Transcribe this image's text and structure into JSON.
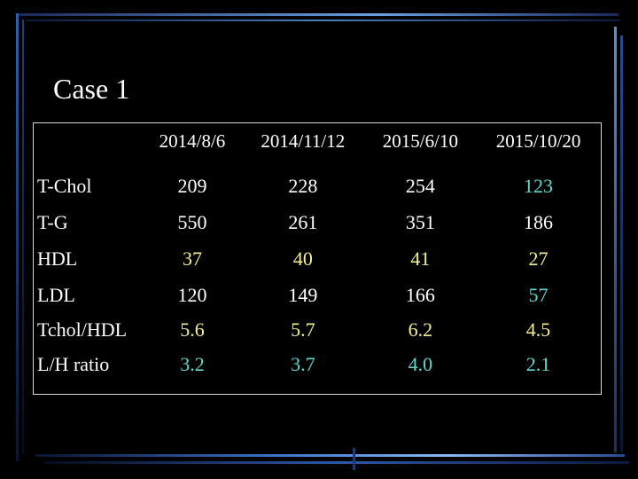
{
  "title": "Case 1",
  "table": {
    "dates": [
      "2014/8/6",
      "2014/11/12",
      "2015/6/10",
      "2015/10/20"
    ],
    "rows": [
      {
        "label": "T-Chol",
        "values": [
          "209",
          "228",
          "254",
          "123"
        ]
      },
      {
        "label": "T-G",
        "values": [
          "550",
          "261",
          "351",
          "186"
        ]
      },
      {
        "label": "HDL",
        "values": [
          "37",
          "40",
          "41",
          "27"
        ]
      },
      {
        "label": "LDL",
        "values": [
          "120",
          "149",
          "166",
          "57"
        ]
      },
      {
        "label": "Tchol/HDL",
        "values": [
          "5.6",
          "5.7",
          "6.2",
          "4.5"
        ]
      },
      {
        "label": "L/H ratio",
        "values": [
          "3.2",
          "3.7",
          "4.0",
          "2.1"
        ]
      }
    ]
  },
  "colors": {
    "background": "#000000",
    "text": "#ffffff",
    "highlight_teal": "#5fd8d0",
    "highlight_yellow": "#f4f090"
  }
}
